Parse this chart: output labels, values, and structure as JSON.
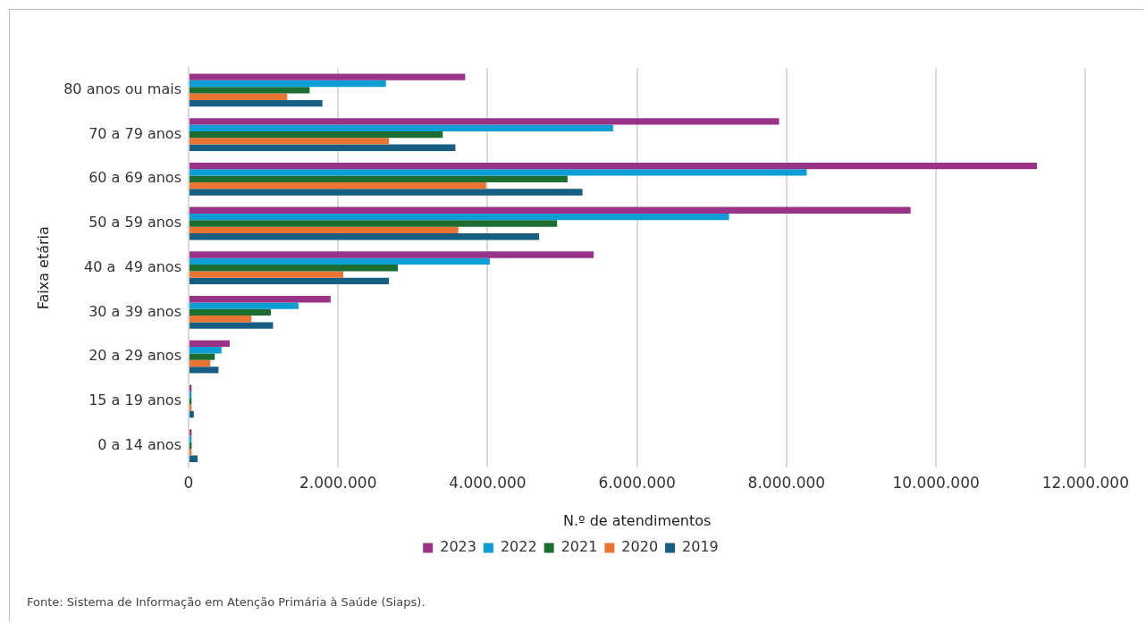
{
  "chart_data": {
    "type": "bar",
    "orientation": "horizontal",
    "xlabel": "N.º de atendimentos",
    "ylabel": "Faixa etária",
    "categories": [
      "80 anos ou mais",
      "70 a 79 anos",
      "60 a 69 anos",
      "50 a 59 anos",
      "40 a  49 anos",
      "30 a 39 anos",
      "20 a 29 anos",
      "15 a 19 anos",
      "0 a 14 anos"
    ],
    "series": [
      {
        "name": "2023",
        "color": "#993388",
        "values": [
          3700000,
          7900000,
          11350000,
          9660000,
          5420000,
          1900000,
          550000,
          40000,
          40000
        ]
      },
      {
        "name": "2022",
        "color": "#0d9ed6",
        "values": [
          2640000,
          5680000,
          8270000,
          7230000,
          4030000,
          1470000,
          440000,
          40000,
          40000
        ]
      },
      {
        "name": "2021",
        "color": "#1c6e30",
        "values": [
          1620000,
          3400000,
          5070000,
          4930000,
          2800000,
          1100000,
          350000,
          40000,
          40000
        ]
      },
      {
        "name": "2020",
        "color": "#ea7432",
        "values": [
          1320000,
          2680000,
          3980000,
          3610000,
          2070000,
          840000,
          290000,
          40000,
          40000
        ]
      },
      {
        "name": "2019",
        "color": "#175f82",
        "values": [
          1790000,
          3570000,
          5270000,
          4690000,
          2680000,
          1130000,
          400000,
          70000,
          120000
        ]
      }
    ],
    "xlim": [
      0,
      12000000
    ],
    "xticks": [
      0,
      {
        "value": 2000000,
        "label": "2.000.000"
      },
      {
        "value": 4000000,
        "label": "4.000.000"
      },
      {
        "value": 6000000,
        "label": "6.000.000"
      },
      {
        "value": 8000000,
        "label": "8.000.000"
      },
      {
        "value": 10000000,
        "label": "10.000.000"
      },
      {
        "value": 12000000,
        "label": "12.000.000"
      }
    ],
    "grid": "x",
    "legend": "bottom",
    "annotations": [
      "Fonte: Sistema de Informação em Atenção Primária à Saúde (Siaps)."
    ]
  }
}
